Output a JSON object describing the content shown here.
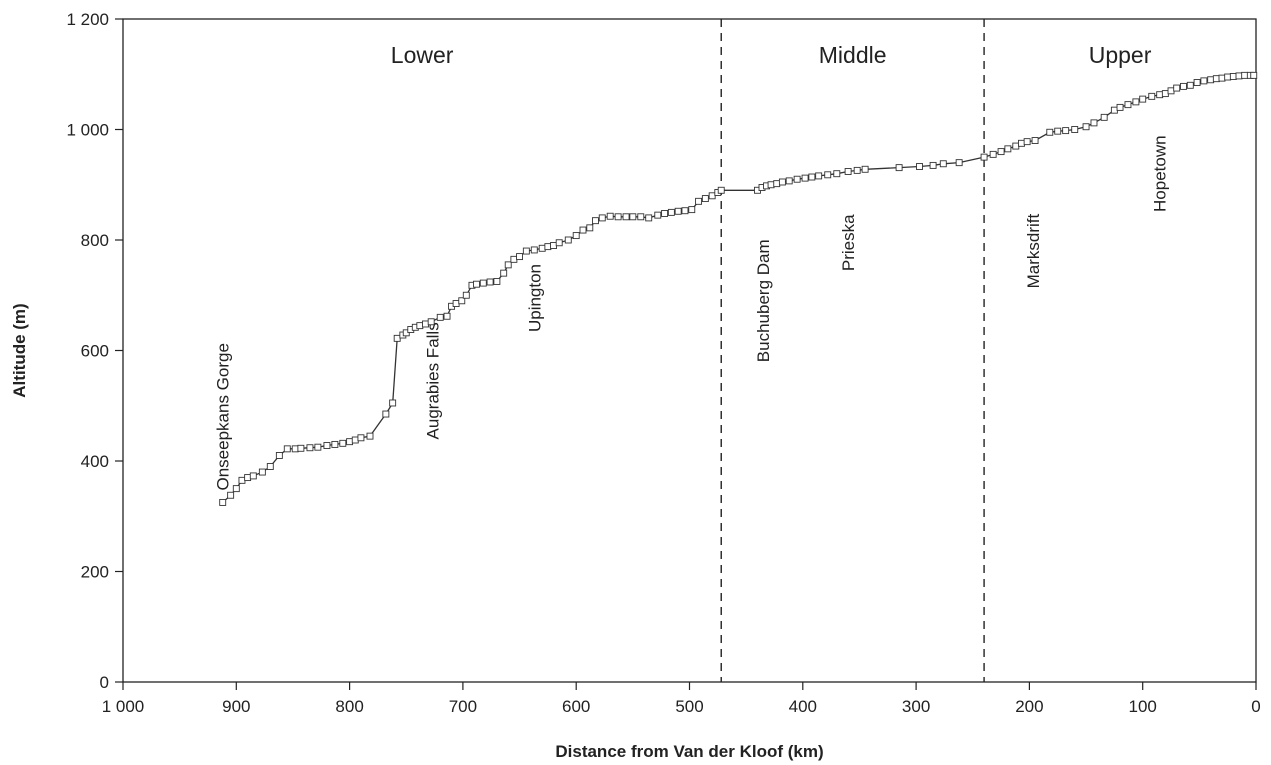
{
  "chart_data": {
    "type": "line",
    "title": "",
    "xlabel": "Distance from Van der Kloof (km)",
    "ylabel": "Altitude (m)",
    "xlim": [
      1000,
      0
    ],
    "ylim": [
      0,
      1200
    ],
    "x_reversed": true,
    "grid": false,
    "legend": "none",
    "x_ticks": [
      1000,
      900,
      800,
      700,
      600,
      500,
      400,
      300,
      200,
      100,
      0
    ],
    "x_tick_labels": [
      "1 000",
      "900",
      "800",
      "700",
      "600",
      "500",
      "400",
      "300",
      "200",
      "100",
      "0"
    ],
    "y_ticks": [
      0,
      200,
      400,
      600,
      800,
      1000,
      1200
    ],
    "y_tick_labels": [
      "0",
      "200",
      "400",
      "600",
      "800",
      "1 000",
      "1 200"
    ],
    "marker": "square",
    "line_color": "#333333",
    "series": [
      {
        "x": [
          912,
          905,
          900,
          895,
          890,
          885,
          877,
          870,
          862,
          855,
          848,
          843,
          835,
          828,
          820,
          813,
          806,
          800,
          795,
          790,
          782,
          768,
          762,
          758,
          753,
          750,
          746,
          742,
          738,
          733,
          728,
          720,
          714,
          710,
          706,
          701,
          697,
          692,
          688,
          682,
          676,
          670,
          664,
          660,
          655,
          650,
          644,
          637,
          630,
          625,
          620,
          615,
          607,
          600,
          594,
          588,
          583,
          577,
          570,
          563,
          556,
          550,
          543,
          536,
          528,
          522,
          516,
          510,
          504,
          498,
          492,
          486,
          480,
          475,
          472,
          440,
          436,
          432,
          428,
          423,
          418,
          412,
          405,
          398,
          392,
          386,
          378,
          370,
          360,
          352,
          345,
          315,
          297,
          285,
          276,
          262,
          240,
          232,
          225,
          219,
          212,
          207,
          202,
          195,
          182,
          175,
          168,
          160,
          150,
          143,
          134,
          125,
          120,
          113,
          106,
          100,
          92,
          85,
          80,
          75,
          70,
          64,
          58,
          52,
          46,
          40,
          35,
          30,
          25,
          20,
          15,
          10,
          5,
          2
        ],
        "y": [
          325,
          338,
          350,
          365,
          370,
          373,
          380,
          390,
          410,
          422,
          422,
          423,
          424,
          425,
          428,
          430,
          432,
          435,
          438,
          442,
          445,
          485,
          505,
          622,
          628,
          632,
          638,
          642,
          645,
          648,
          652,
          660,
          662,
          680,
          685,
          690,
          700,
          718,
          720,
          722,
          724,
          725,
          740,
          755,
          765,
          770,
          780,
          782,
          785,
          788,
          790,
          795,
          800,
          808,
          818,
          822,
          835,
          840,
          843,
          842,
          842,
          842,
          842,
          840,
          845,
          848,
          850,
          852,
          853,
          855,
          870,
          875,
          880,
          886,
          890,
          890,
          895,
          898,
          900,
          902,
          905,
          907,
          910,
          912,
          914,
          916,
          918,
          920,
          924,
          926,
          928,
          931,
          933,
          935,
          938,
          940,
          950,
          955,
          960,
          965,
          970,
          975,
          978,
          980,
          995,
          997,
          998,
          1000,
          1005,
          1012,
          1022,
          1035,
          1040,
          1045,
          1050,
          1055,
          1060,
          1063,
          1065,
          1070,
          1075,
          1078,
          1080,
          1085,
          1088,
          1090,
          1092,
          1093,
          1095,
          1096,
          1097,
          1098,
          1098,
          1098
        ]
      }
    ],
    "dividers_x": [
      472,
      240
    ],
    "regions": [
      {
        "label": "Lower",
        "x": 736
      },
      {
        "label": "Middle",
        "x": 356
      },
      {
        "label": "Upper",
        "x": 120
      }
    ],
    "annotations": [
      {
        "text": "Onseepkans Gorge",
        "x": 912,
        "y": 480
      },
      {
        "text": "Augrabies Falls",
        "x": 727,
        "y": 545
      },
      {
        "text": "Upington",
        "x": 637,
        "y": 695
      },
      {
        "text": "Buchuberg Dam",
        "x": 435,
        "y": 690
      },
      {
        "text": "Prieska",
        "x": 360,
        "y": 795
      },
      {
        "text": "Marksdrift",
        "x": 197,
        "y": 780
      },
      {
        "text": "Hopetown",
        "x": 85,
        "y": 920
      }
    ]
  }
}
